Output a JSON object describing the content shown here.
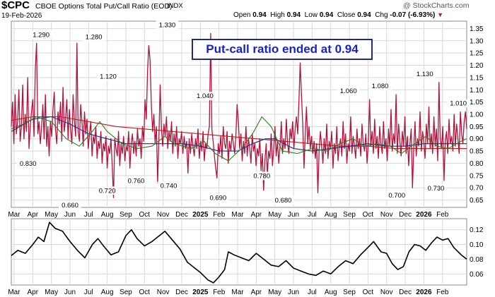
{
  "header": {
    "symbol": "$CPC",
    "name": "CBOE Options Total Put/Call Ratio (EOD)",
    "exchange": "INDX",
    "date": "19-Feb-2026",
    "watermark": "@ StockCharts.com",
    "open_label": "Open",
    "open": "0.94",
    "high_label": "High",
    "high": "0.94",
    "low_label": "Low",
    "low": "0.94",
    "close_label": "Close",
    "close": "0.94",
    "chg_label": "Chg",
    "chg": "-0.07 (-6.93%)",
    "down_arrow_icon": "red-down-triangle"
  },
  "annotation": "Put-call ratio ended at 0.94",
  "colors": {
    "price": "#b3123b",
    "ma_short": "#2a7f1e",
    "ma_mid": "#1d2a8c",
    "ma_long": "#c4161c",
    "line": "#000000"
  },
  "chart_data": [
    {
      "type": "line",
      "ylim": [
        0.62,
        1.38
      ],
      "y_ticks": [
        0.65,
        0.7,
        0.75,
        0.8,
        0.85,
        0.9,
        0.95,
        1.0,
        1.05,
        1.1,
        1.15,
        1.2,
        1.25,
        1.3,
        1.35
      ],
      "x_tick_labels": [
        "Mar",
        "Apr",
        "May",
        "Jun",
        "Jul",
        "Aug",
        "Sep",
        "Oct",
        "Nov",
        "Dec",
        "2025",
        "Feb",
        "Mar",
        "Apr",
        "May",
        "Jun",
        "Jul",
        "Aug",
        "Sep",
        "Oct",
        "Nov",
        "Dec",
        "2026",
        "Feb"
      ],
      "x_tick_months": [
        1,
        2,
        3,
        4,
        5,
        6,
        7,
        8,
        9,
        10,
        11,
        12,
        13,
        14,
        15,
        16,
        17,
        18,
        19,
        20,
        21,
        22,
        23,
        24
      ],
      "x_range_months": [
        0.85,
        25.3
      ],
      "peak_labels": [
        {
          "month": 2.45,
          "value": 1.29,
          "text": "1.290"
        },
        {
          "month": 5.28,
          "value": 1.28,
          "text": "1.280"
        },
        {
          "month": 6.05,
          "value": 1.12,
          "text": "1.120"
        },
        {
          "month": 9.22,
          "value": 1.33,
          "text": "1.330"
        },
        {
          "month": 11.25,
          "value": 1.04,
          "text": "1.040"
        },
        {
          "month": 18.95,
          "value": 1.06,
          "text": "1.060"
        },
        {
          "month": 20.65,
          "value": 1.08,
          "text": "1.080"
        },
        {
          "month": 23.05,
          "value": 1.13,
          "text": "1.130"
        },
        {
          "month": 24.85,
          "value": 1.01,
          "text": "1.010"
        }
      ],
      "trough_labels": [
        {
          "month": 1.75,
          "value": 0.83,
          "text": "0.830"
        },
        {
          "month": 4.0,
          "value": 0.66,
          "text": "0.660"
        },
        {
          "month": 6.0,
          "value": 0.72,
          "text": "0.720"
        },
        {
          "month": 7.55,
          "value": 0.76,
          "text": "0.760"
        },
        {
          "month": 9.3,
          "value": 0.74,
          "text": "0.740"
        },
        {
          "month": 11.95,
          "value": 0.69,
          "text": "0.690"
        },
        {
          "month": 14.3,
          "value": 0.78,
          "text": "0.780"
        },
        {
          "month": 15.45,
          "value": 0.68,
          "text": "0.680"
        },
        {
          "month": 21.55,
          "value": 0.7,
          "text": "0.700"
        },
        {
          "month": 23.65,
          "value": 0.73,
          "text": "0.730"
        }
      ],
      "ma_short": [
        [
          0.85,
          0.94
        ],
        [
          1.5,
          0.96
        ],
        [
          2.2,
          0.99
        ],
        [
          3.0,
          0.97
        ],
        [
          3.8,
          0.9
        ],
        [
          4.5,
          0.87
        ],
        [
          5.2,
          0.93
        ],
        [
          5.6,
          0.97
        ],
        [
          6.0,
          0.93
        ],
        [
          6.8,
          0.88
        ],
        [
          7.6,
          0.86
        ],
        [
          8.4,
          0.87
        ],
        [
          9.1,
          0.91
        ],
        [
          9.6,
          0.88
        ],
        [
          10.5,
          0.86
        ],
        [
          11.2,
          0.89
        ],
        [
          11.8,
          0.84
        ],
        [
          12.5,
          0.81
        ],
        [
          13.2,
          0.86
        ],
        [
          13.8,
          0.92
        ],
        [
          14.3,
          0.99
        ],
        [
          14.8,
          0.95
        ],
        [
          15.4,
          0.85
        ],
        [
          16.2,
          0.84
        ],
        [
          17.0,
          0.86
        ],
        [
          17.8,
          0.85
        ],
        [
          18.5,
          0.88
        ],
        [
          19.2,
          0.9
        ],
        [
          19.8,
          0.87
        ],
        [
          20.5,
          0.88
        ],
        [
          21.2,
          0.87
        ],
        [
          21.8,
          0.84
        ],
        [
          22.5,
          0.88
        ],
        [
          23.1,
          0.91
        ],
        [
          23.7,
          0.87
        ],
        [
          24.3,
          0.86
        ],
        [
          25.0,
          0.89
        ],
        [
          25.3,
          0.9
        ]
      ],
      "ma_mid": [
        [
          0.85,
          0.93
        ],
        [
          2.0,
          0.98
        ],
        [
          3.0,
          0.99
        ],
        [
          4.0,
          0.96
        ],
        [
          5.0,
          0.92
        ],
        [
          6.0,
          0.9
        ],
        [
          7.0,
          0.88
        ],
        [
          8.0,
          0.88
        ],
        [
          9.0,
          0.88
        ],
        [
          10.0,
          0.88
        ],
        [
          11.0,
          0.87
        ],
        [
          12.0,
          0.85
        ],
        [
          13.0,
          0.85
        ],
        [
          13.8,
          0.88
        ],
        [
          14.5,
          0.9
        ],
        [
          15.0,
          0.9
        ],
        [
          16.0,
          0.86
        ],
        [
          17.0,
          0.85
        ],
        [
          18.0,
          0.86
        ],
        [
          19.0,
          0.87
        ],
        [
          20.0,
          0.88
        ],
        [
          21.0,
          0.87
        ],
        [
          22.0,
          0.87
        ],
        [
          23.0,
          0.88
        ],
        [
          24.0,
          0.88
        ],
        [
          25.3,
          0.88
        ]
      ],
      "ma_long": [
        [
          0.85,
          0.975
        ],
        [
          2.0,
          0.99
        ],
        [
          3.5,
          0.99
        ],
        [
          5.0,
          0.97
        ],
        [
          6.5,
          0.95
        ],
        [
          8.0,
          0.94
        ],
        [
          9.5,
          0.93
        ],
        [
          11.0,
          0.92
        ],
        [
          12.5,
          0.91
        ],
        [
          14.0,
          0.9
        ],
        [
          15.5,
          0.89
        ],
        [
          17.0,
          0.88
        ],
        [
          18.5,
          0.87
        ],
        [
          20.0,
          0.87
        ],
        [
          21.5,
          0.86
        ],
        [
          23.0,
          0.86
        ],
        [
          24.5,
          0.86
        ],
        [
          25.3,
          0.86
        ]
      ],
      "series": [
        {
          "values": [
            0.95,
            1.05,
            0.88,
            1.08,
            0.92,
            0.97,
            1.1,
            0.89,
            0.95,
            1.12,
            0.9,
            1.0,
            0.93,
            1.15,
            0.86,
            0.95,
            1.01,
            1.06,
            0.91,
            1.18,
            1.29,
            0.92,
            0.97,
            0.88,
            0.95,
            1.04,
            0.9,
            1.08,
            0.87,
            0.95,
            0.83,
            0.97,
            0.91,
            1.02,
            1.09,
            0.94,
            0.88,
            1.01,
            0.96,
            1.05,
            0.89,
            1.11,
            0.93,
            0.98,
            1.06,
            0.9,
            1.02,
            0.94,
            0.88,
            1.08,
            0.97,
            0.91,
            1.29,
            0.93,
            0.89,
            1.04,
            0.97,
            0.87,
            1.01,
            0.92,
            0.98,
            0.86,
            0.92,
            0.97,
            0.83,
            0.91,
            0.88,
            0.95,
            0.82,
            0.89,
            0.86,
            0.93,
            0.8,
            0.88,
            0.85,
            0.91,
            0.78,
            0.87,
            0.84,
            0.9,
            0.79,
            0.66,
            0.9,
            0.86,
            0.83,
            0.93,
            0.79,
            0.88,
            0.84,
            0.91,
            0.81,
            0.87,
            0.85,
            0.93,
            0.78,
            0.88,
            0.92,
            0.84,
            0.89,
            0.83,
            0.94,
            0.87,
            0.9,
            0.82,
            0.95,
            0.89,
            1.06,
            0.98,
            1.18,
            1.28,
            1.22,
            1.04,
            0.93,
            1.0,
            0.88,
            0.95,
            0.72,
            0.9,
            1.12,
            0.94,
            0.87,
            0.96,
            0.91,
            0.99,
            0.86,
            0.93,
            0.89,
            0.97,
            0.84,
            0.92,
            0.87,
            0.95,
            0.82,
            0.9,
            0.88,
            0.93,
            0.84,
            0.91,
            0.86,
            0.89,
            0.76,
            0.9,
            0.84,
            0.92,
            0.87,
            0.83,
            0.9,
            0.86,
            0.94,
            0.82,
            0.89,
            0.85,
            0.93,
            0.81,
            0.88,
            0.86,
            0.92,
            0.95,
            1.33,
            0.94,
            0.89,
            0.83,
            0.78,
            0.74,
            0.88,
            0.84,
            0.91,
            0.82,
            0.95,
            0.88,
            0.86,
            0.93,
            0.8,
            0.89,
            0.85,
            0.92,
            0.88,
            0.84,
            0.91,
            1.04,
            0.97,
            0.86,
            0.92,
            0.81,
            0.89,
            0.84,
            0.95,
            0.83,
            0.9,
            0.86,
            0.8,
            0.92,
            0.85,
            0.88,
            0.79,
            0.86,
            0.83,
            0.9,
            0.77,
            0.84,
            0.69,
            0.81,
            0.88,
            0.75,
            0.85,
            0.82,
            0.92,
            0.79,
            0.86,
            0.95,
            0.83,
            0.89,
            0.8,
            0.87,
            0.97,
            0.84,
            0.9,
            0.86,
            0.98,
            0.88,
            0.84,
            0.94,
            0.9,
            0.97,
            0.86,
            0.94,
            0.99,
            0.92,
            1.05,
            1.21,
            1.08,
            0.96,
            0.78,
            0.92,
            1.03,
            0.88,
            0.95,
            0.86,
            0.91,
            0.84,
            0.89,
            0.82,
            0.88,
            0.68,
            0.85,
            0.93,
            0.87,
            0.8,
            0.9,
            0.84,
            0.96,
            0.82,
            0.89,
            0.86,
            0.93,
            0.78,
            0.88,
            0.84,
            0.95,
            0.81,
            0.87,
            0.9,
            0.83,
            0.97,
            0.86,
            0.92,
            0.8,
            0.88,
            0.85,
            0.99,
            0.84,
            0.91,
            0.87,
            0.82,
            0.94,
            0.86,
            0.9,
            0.83,
            0.96,
            0.88,
            0.85,
            0.92,
            0.8,
            0.89,
            1.06,
            0.87,
            0.93,
            0.84,
            0.98,
            0.86,
            0.91,
            0.82,
            0.95,
            0.88,
            0.84,
            0.97,
            0.86,
            0.9,
            0.81,
            0.94,
            0.87,
            1.02,
            0.85,
            0.92,
            0.88,
            1.08,
            0.84,
            0.96,
            0.89,
            0.83,
            0.93,
            0.87,
            0.99,
            0.84,
            0.91,
            0.79,
            0.88,
            0.94,
            0.7,
            0.86,
            0.97,
            0.83,
            0.9,
            0.87,
            1.01,
            0.85,
            0.93,
            0.89,
            0.82,
            0.96,
            0.88,
            1.03,
            0.86,
            0.92,
            0.84,
            0.99,
            0.87,
            0.94,
            0.81,
            1.13,
            0.9,
            0.86,
            0.95,
            0.73,
            0.89,
            0.93,
            0.84,
            0.98,
            0.88,
            0.91,
            0.85,
            1.0,
            0.87,
            0.96,
            0.9,
            0.84,
            1.01,
            0.92,
            0.88,
            0.97,
            1.01,
            0.94
          ]
        }
      ]
    },
    {
      "type": "line",
      "ylim": [
        0.045,
        0.135
      ],
      "y_ticks": [
        0.06,
        0.08,
        0.1,
        0.12
      ],
      "x_tick_labels": [
        "Mar",
        "Apr",
        "May",
        "Jun",
        "Jul",
        "Aug",
        "Sep",
        "Oct",
        "Nov",
        "Dec",
        "2025",
        "Feb",
        "Mar",
        "Apr",
        "May",
        "Jun",
        "Jul",
        "Aug",
        "Sep",
        "Oct",
        "Nov",
        "Dec",
        "2026",
        "Feb"
      ],
      "series": [
        {
          "points": [
            [
              0.85,
              0.085
            ],
            [
              1.2,
              0.092
            ],
            [
              1.6,
              0.088
            ],
            [
              2.0,
              0.1
            ],
            [
              2.3,
              0.11
            ],
            [
              2.6,
              0.104
            ],
            [
              2.9,
              0.13
            ],
            [
              3.2,
              0.122
            ],
            [
              3.6,
              0.118
            ],
            [
              4.0,
              0.104
            ],
            [
              4.4,
              0.092
            ],
            [
              4.8,
              0.082
            ],
            [
              5.2,
              0.1
            ],
            [
              5.5,
              0.108
            ],
            [
              5.8,
              0.098
            ],
            [
              6.2,
              0.086
            ],
            [
              6.6,
              0.09
            ],
            [
              7.0,
              0.112
            ],
            [
              7.3,
              0.12
            ],
            [
              7.6,
              0.108
            ],
            [
              8.0,
              0.098
            ],
            [
              8.4,
              0.104
            ],
            [
              8.8,
              0.112
            ],
            [
              9.1,
              0.118
            ],
            [
              9.5,
              0.106
            ],
            [
              9.9,
              0.094
            ],
            [
              10.3,
              0.076
            ],
            [
              10.7,
              0.068
            ],
            [
              11.0,
              0.062
            ],
            [
              11.4,
              0.052
            ],
            [
              11.7,
              0.048
            ],
            [
              12.0,
              0.056
            ],
            [
              12.3,
              0.066
            ],
            [
              12.5,
              0.09
            ],
            [
              12.8,
              0.086
            ],
            [
              13.2,
              0.082
            ],
            [
              13.6,
              0.078
            ],
            [
              14.0,
              0.088
            ],
            [
              14.4,
              0.08
            ],
            [
              14.8,
              0.072
            ],
            [
              15.2,
              0.07
            ],
            [
              15.6,
              0.078
            ],
            [
              16.0,
              0.068
            ],
            [
              16.4,
              0.064
            ],
            [
              16.8,
              0.06
            ],
            [
              17.2,
              0.058
            ],
            [
              17.6,
              0.064
            ],
            [
              18.0,
              0.06
            ],
            [
              18.4,
              0.07
            ],
            [
              18.8,
              0.078
            ],
            [
              19.2,
              0.074
            ],
            [
              19.6,
              0.086
            ],
            [
              20.0,
              0.096
            ],
            [
              20.3,
              0.104
            ],
            [
              20.7,
              0.09
            ],
            [
              21.0,
              0.088
            ],
            [
              21.3,
              0.074
            ],
            [
              21.6,
              0.066
            ],
            [
              21.9,
              0.07
            ],
            [
              22.2,
              0.09
            ],
            [
              22.5,
              0.1
            ],
            [
              22.8,
              0.098
            ],
            [
              23.1,
              0.092
            ],
            [
              23.4,
              0.102
            ],
            [
              23.7,
              0.11
            ],
            [
              24.0,
              0.106
            ],
            [
              24.3,
              0.108
            ],
            [
              24.6,
              0.096
            ],
            [
              25.0,
              0.086
            ],
            [
              25.3,
              0.08
            ]
          ]
        }
      ]
    }
  ]
}
